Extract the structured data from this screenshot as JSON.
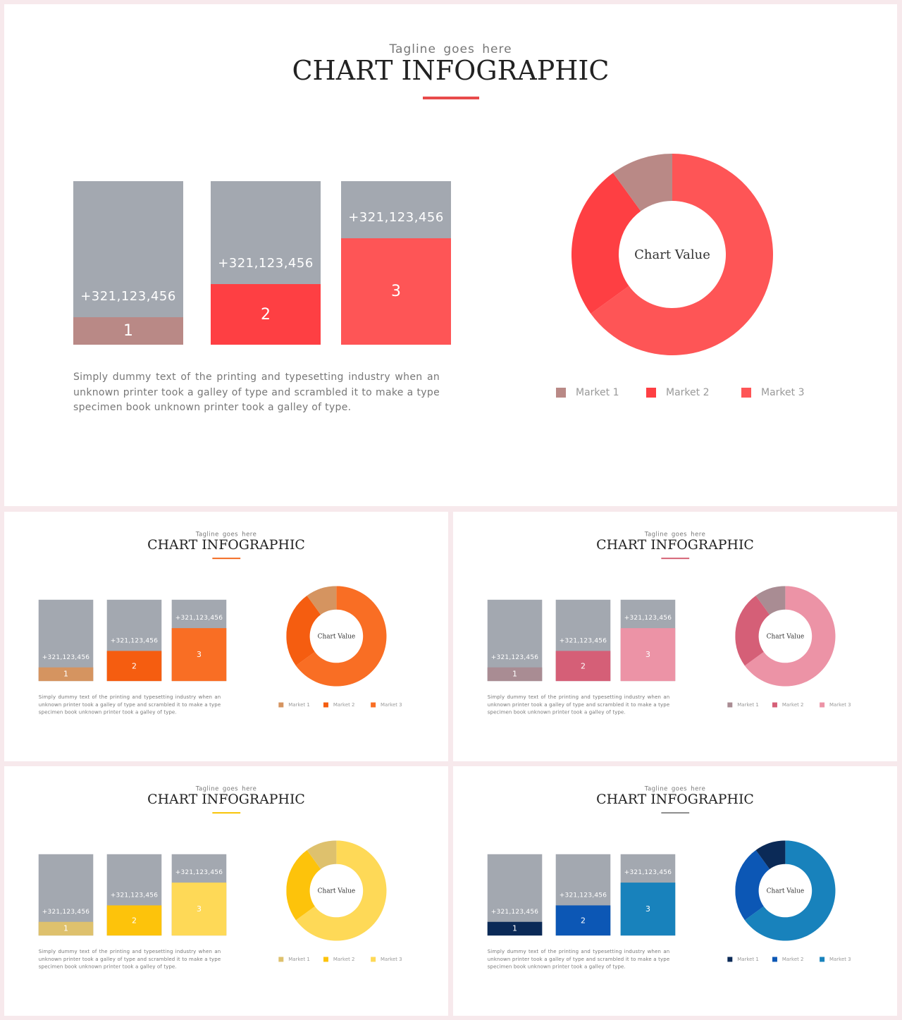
{
  "slides": [
    {
      "tagline": "Tagline  goes  here",
      "title": "CHART INFOGRAPHIC",
      "accent": "#e84a4a",
      "bars": [
        {
          "label": "1",
          "value_text": "+321,123,456",
          "level": 0.17,
          "color": "#b98986"
        },
        {
          "label": "2",
          "value_text": "+321,123,456",
          "level": 0.37,
          "color": "#fe3f43"
        },
        {
          "label": "3",
          "value_text": "+321,123,456",
          "level": 0.65,
          "color": "#fe5556"
        }
      ],
      "description": "Simply dummy text of the printing  and typesetting  industry  when  an  unknown printer  took  a  galley  of  type  and  scrambled  it  to  make  a  type  specimen  book unknown  printer  took  a galley  of  type.",
      "donut_label": "Chart Value",
      "legend": [
        {
          "label": "Market  1",
          "color": "#b98986"
        },
        {
          "label": "Market  2",
          "color": "#fe3f43"
        },
        {
          "label": "Market  3",
          "color": "#fe5556"
        }
      ]
    },
    {
      "tagline": "Tagline  goes  here",
      "title": "CHART INFOGRAPHIC",
      "accent": "#f36b22",
      "bars": [
        {
          "label": "1",
          "value_text": "+321,123,456",
          "level": 0.17,
          "color": "#d59460"
        },
        {
          "label": "2",
          "value_text": "+321,123,456",
          "level": 0.37,
          "color": "#f55d10"
        },
        {
          "label": "3",
          "value_text": "+321,123,456",
          "level": 0.65,
          "color": "#f96e24"
        }
      ],
      "description": "Simply  dummy  text of the printing  and typesetting  industry  when  an unknown printer  took  a  galley of  type  and  scrambled  it  to  make  a  type  specimen  book unknown  printer  took  a galley  of  type.",
      "donut_label": "Chart Value",
      "legend": [
        {
          "label": "Market  1",
          "color": "#d59460"
        },
        {
          "label": "Market  2",
          "color": "#f55d10"
        },
        {
          "label": "Market  3",
          "color": "#f96e24"
        }
      ]
    },
    {
      "tagline": "Tagline  goes  here",
      "title": "CHART INFOGRAPHIC",
      "accent": "#d56275",
      "bars": [
        {
          "label": "1",
          "value_text": "+321,123,456",
          "level": 0.17,
          "color": "#a98c93"
        },
        {
          "label": "2",
          "value_text": "+321,123,456",
          "level": 0.37,
          "color": "#d55f77"
        },
        {
          "label": "3",
          "value_text": "+321,123,456",
          "level": 0.65,
          "color": "#ec93a6"
        }
      ],
      "description": "Simply  dummy  text of the printing  and typesetting  industry  when  an unknown printer  took  a  galley of  type  and  scrambled  it  to  make  a  type  specimen  book unknown  printer  took  a galley  of  type.",
      "donut_label": "Chart Value",
      "legend": [
        {
          "label": "Market  1",
          "color": "#a98c93"
        },
        {
          "label": "Market  2",
          "color": "#d55f77"
        },
        {
          "label": "Market  3",
          "color": "#ec93a6"
        }
      ]
    },
    {
      "tagline": "Tagline  goes  here",
      "title": "CHART INFOGRAPHIC",
      "accent": "#f8c300",
      "bars": [
        {
          "label": "1",
          "value_text": "+321,123,456",
          "level": 0.17,
          "color": "#dec16d"
        },
        {
          "label": "2",
          "value_text": "+321,123,456",
          "level": 0.37,
          "color": "#fdc30b"
        },
        {
          "label": "3",
          "value_text": "+321,123,456",
          "level": 0.65,
          "color": "#fed957"
        }
      ],
      "description": "Simply  dummy  text of the printing  and typesetting  industry  when  an unknown printer  took  a  galley of  type  and  scrambled  it  to  make  a  type  specimen  book unknown  printer  took  a galley  of  type.",
      "donut_label": "Chart Value",
      "legend": [
        {
          "label": "Market  1",
          "color": "#dec16d"
        },
        {
          "label": "Market  2",
          "color": "#fdc30b"
        },
        {
          "label": "Market  3",
          "color": "#fed957"
        }
      ]
    },
    {
      "tagline": "Tagline  goes  here",
      "title": "CHART INFOGRAPHIC",
      "accent": "#8a8a8a",
      "bars": [
        {
          "label": "1",
          "value_text": "+321,123,456",
          "level": 0.17,
          "color": "#0b2a57"
        },
        {
          "label": "2",
          "value_text": "+321,123,456",
          "level": 0.37,
          "color": "#0c57b5"
        },
        {
          "label": "3",
          "value_text": "+321,123,456",
          "level": 0.65,
          "color": "#1882bc"
        }
      ],
      "description": "Simply  dummy  text of the printing  and typesetting  industry  when  an unknown printer  took  a  galley of  type  and  scrambled  it  to  make  a  type  specimen  book unknown  printer  took  a galley  of  type.",
      "donut_label": "Chart Value",
      "legend": [
        {
          "label": "Market  1",
          "color": "#0b2a57"
        },
        {
          "label": "Market  2",
          "color": "#0c57b5"
        },
        {
          "label": "Market  3",
          "color": "#1882bc"
        }
      ]
    }
  ],
  "chart_data": [
    {
      "type": "pie",
      "labels": [
        "Market  1",
        "Market  2",
        "Market  3"
      ],
      "values": [
        0.1,
        0.25,
        0.65
      ]
    },
    {
      "type": "pie",
      "labels": [
        "Market  1",
        "Market  2",
        "Market  3"
      ],
      "values": [
        0.1,
        0.25,
        0.65
      ]
    },
    {
      "type": "pie",
      "labels": [
        "Market  1",
        "Market  2",
        "Market  3"
      ],
      "values": [
        0.1,
        0.25,
        0.65
      ]
    },
    {
      "type": "pie",
      "labels": [
        "Market  1",
        "Market  2",
        "Market  3"
      ],
      "values": [
        0.1,
        0.25,
        0.65
      ]
    },
    {
      "type": "pie",
      "labels": [
        "Market  1",
        "Market  2",
        "Market  3"
      ],
      "values": [
        0.1,
        0.25,
        0.65
      ]
    }
  ]
}
